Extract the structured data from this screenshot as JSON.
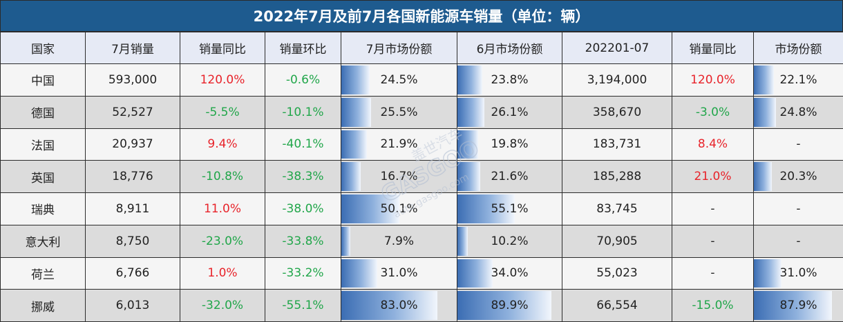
{
  "title": "2022年7月及前7月各国新能源车销量（单位：辆）",
  "headers": [
    "国家",
    "7月销量",
    "销量同比",
    "销量环比",
    "7月市场份额",
    "6月市场份额",
    "202201-07",
    "销量同比",
    "市场份额"
  ],
  "rows": [
    {
      "country": "中国",
      "jul_sales": "593,000",
      "yoy": "120.0%",
      "mom": "-0.6%",
      "jul_share": "24.5%",
      "jun_share": "23.8%",
      "ytd": "3,194,000",
      "ytd_yoy": "120.0%",
      "ytd_share": "22.1%"
    },
    {
      "country": "德国",
      "jul_sales": "52,527",
      "yoy": "-5.5%",
      "mom": "-10.1%",
      "jul_share": "25.5%",
      "jun_share": "26.1%",
      "ytd": "358,670",
      "ytd_yoy": "-3.0%",
      "ytd_share": "24.8%"
    },
    {
      "country": "法国",
      "jul_sales": "20,937",
      "yoy": "9.4%",
      "mom": "-40.1%",
      "jul_share": "21.9%",
      "jun_share": "19.8%",
      "ytd": "183,731",
      "ytd_yoy": "8.4%",
      "ytd_share": "-"
    },
    {
      "country": "英国",
      "jul_sales": "18,776",
      "yoy": "-10.8%",
      "mom": "-38.3%",
      "jul_share": "16.7%",
      "jun_share": "21.6%",
      "ytd": "185,288",
      "ytd_yoy": "21.0%",
      "ytd_share": "20.3%"
    },
    {
      "country": "瑞典",
      "jul_sales": "8,911",
      "yoy": "11.0%",
      "mom": "-38.0%",
      "jul_share": "50.1%",
      "jun_share": "55.1%",
      "ytd": "83,745",
      "ytd_yoy": "-",
      "ytd_share": "-"
    },
    {
      "country": "意大利",
      "jul_sales": "8,750",
      "yoy": "-23.0%",
      "mom": "-33.8%",
      "jul_share": "7.9%",
      "jun_share": "10.2%",
      "ytd": "70,905",
      "ytd_yoy": "-",
      "ytd_share": "-"
    },
    {
      "country": "荷兰",
      "jul_sales": "6,766",
      "yoy": "1.0%",
      "mom": "-33.2%",
      "jul_share": "31.0%",
      "jun_share": "34.0%",
      "ytd": "55,023",
      "ytd_yoy": "-",
      "ytd_share": "31.0%"
    },
    {
      "country": "挪威",
      "jul_sales": "6,013",
      "yoy": "-32.0%",
      "mom": "-55.1%",
      "jul_share": "83.0%",
      "jun_share": "89.9%",
      "ytd": "66,554",
      "ytd_yoy": "-15.0%",
      "ytd_share": "87.9%"
    }
  ],
  "colors": {
    "title_bg": "#1e5b8f",
    "header_bg": "#e6eaf5",
    "positive": "#e8232a",
    "negative": "#21a64a",
    "bar": "#3b6db3"
  },
  "watermark": {
    "brand": "盖世汽车",
    "logo_text": "GASGOO",
    "url": "auto.gasgoo.com"
  }
}
